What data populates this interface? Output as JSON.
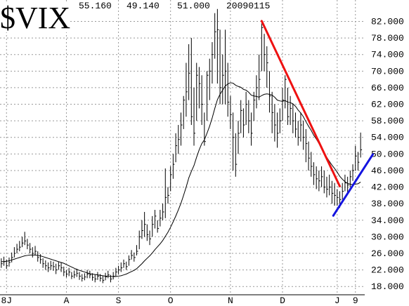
{
  "chart_data": {
    "type": "ohlc",
    "title": "$VIX",
    "header": {
      "high": "55.160",
      "low": "49.140",
      "close": "51.000",
      "date": "20090115"
    },
    "categories": [
      null,
      null,
      "8J",
      null,
      null,
      null,
      null,
      null,
      null,
      null,
      null,
      null,
      null,
      null,
      null,
      null,
      null,
      null,
      null,
      null,
      null,
      null,
      null,
      null,
      null,
      "A",
      null,
      null,
      null,
      null,
      null,
      null,
      null,
      null,
      null,
      null,
      null,
      null,
      null,
      null,
      null,
      null,
      null,
      null,
      null,
      "S",
      null,
      null,
      null,
      null,
      null,
      null,
      null,
      null,
      null,
      null,
      null,
      null,
      null,
      null,
      null,
      null,
      null,
      null,
      null,
      "O",
      null,
      null,
      null,
      null,
      null,
      null,
      null,
      null,
      null,
      null,
      null,
      null,
      null,
      null,
      null,
      null,
      null,
      null,
      null,
      null,
      null,
      null,
      "N",
      null,
      null,
      null,
      null,
      null,
      null,
      null,
      null,
      null,
      null,
      null,
      null,
      null,
      null,
      null,
      null,
      null,
      null,
      null,
      "D",
      null,
      null,
      null,
      null,
      null,
      null,
      null,
      null,
      null,
      null,
      null,
      null,
      null,
      null,
      null,
      null,
      null,
      null,
      null,
      null,
      "J",
      null,
      null,
      null,
      null,
      null,
      null,
      "9",
      null,
      null
    ],
    "high": [
      24.8,
      25.2,
      24.5,
      25.0,
      26.2,
      27.5,
      28.3,
      29.0,
      30.0,
      31.2,
      29.5,
      28.5,
      27.5,
      27.8,
      26.5,
      25.8,
      24.8,
      24.3,
      23.8,
      24.2,
      24.0,
      23.5,
      24.0,
      23.8,
      22.8,
      22.0,
      22.5,
      21.5,
      21.8,
      22.3,
      21.5,
      21.0,
      21.2,
      22.0,
      21.8,
      21.2,
      20.8,
      21.5,
      21.0,
      20.5,
      21.3,
      21.8,
      20.8,
      21.5,
      22.5,
      23.0,
      23.8,
      24.5,
      24.0,
      25.5,
      26.8,
      26.2,
      28.0,
      31.5,
      34.0,
      36.0,
      33.0,
      31.5,
      35.0,
      36.5,
      34.0,
      36.5,
      38.0,
      46.5,
      42.0,
      47.0,
      50.0,
      55.0,
      57.0,
      60.0,
      64.0,
      72.0,
      76.5,
      78.0,
      66.0,
      72.0,
      71.0,
      69.0,
      60.0,
      70.0,
      73.0,
      77.0,
      84.0,
      85.0,
      80.0,
      74.0,
      80.0,
      72.0,
      64.0,
      60.0,
      55.0,
      58.0,
      63.0,
      61.0,
      65.0,
      63.0,
      60.0,
      65.0,
      69.0,
      74.0,
      81.5,
      79.0,
      76.0,
      70.0,
      65.0,
      62.0,
      60.0,
      61.0,
      66.0,
      69.0,
      66.0,
      64.0,
      62.0,
      60.0,
      58.0,
      60.0,
      58.0,
      56.0,
      53.0,
      50.5,
      48.0,
      47.0,
      46.0,
      47.0,
      46.0,
      44.5,
      45.0,
      43.5,
      43.0,
      41.5,
      41.0,
      43.0,
      45.0,
      44.5,
      46.0,
      47.5,
      52.0,
      50.5,
      55.16
    ],
    "low": [
      22.5,
      23.0,
      22.2,
      22.8,
      23.8,
      25.0,
      26.0,
      26.5,
      27.5,
      28.0,
      27.0,
      26.0,
      25.0,
      25.5,
      24.0,
      23.5,
      22.5,
      22.0,
      21.5,
      22.0,
      21.8,
      21.0,
      22.0,
      21.5,
      20.5,
      20.2,
      20.5,
      19.8,
      20.0,
      20.3,
      19.6,
      19.2,
      19.5,
      20.0,
      20.0,
      19.4,
      19.0,
      19.6,
      19.2,
      18.8,
      19.5,
      20.0,
      19.0,
      19.7,
      20.5,
      21.0,
      21.5,
      22.5,
      22.0,
      23.0,
      24.5,
      24.0,
      25.5,
      27.0,
      29.5,
      30.0,
      29.0,
      28.0,
      30.0,
      32.0,
      31.0,
      32.5,
      34.0,
      34.5,
      38.0,
      41.0,
      44.0,
      48.0,
      50.0,
      52.0,
      56.0,
      59.0,
      63.0,
      57.0,
      52.0,
      58.0,
      61.0,
      57.0,
      52.0,
      58.0,
      63.0,
      67.0,
      73.0,
      67.0,
      62.0,
      62.0,
      62.0,
      59.0,
      56.0,
      46.0,
      44.5,
      50.0,
      55.0,
      54.0,
      57.0,
      55.0,
      52.0,
      58.0,
      61.0,
      63.0,
      70.0,
      70.0,
      66.0,
      60.0,
      55.0,
      53.0,
      51.5,
      55.0,
      58.0,
      61.0,
      57.0,
      57.0,
      55.0,
      54.0,
      52.0,
      53.0,
      51.0,
      48.0,
      46.0,
      44.5,
      42.5,
      41.5,
      41.0,
      42.0,
      40.5,
      39.5,
      40.0,
      38.0,
      37.5,
      37.5,
      37.0,
      39.0,
      41.0,
      40.5,
      42.0,
      43.5,
      46.0,
      46.0,
      49.14
    ],
    "close": [
      23.5,
      24.0,
      23.0,
      23.8,
      25.0,
      26.0,
      27.0,
      27.5,
      28.5,
      29.0,
      28.0,
      27.0,
      26.0,
      26.5,
      25.0,
      24.5,
      23.5,
      23.0,
      22.5,
      23.0,
      22.8,
      22.0,
      23.0,
      22.5,
      21.5,
      21.0,
      21.5,
      20.5,
      20.8,
      21.2,
      20.5,
      20.0,
      20.3,
      21.0,
      20.8,
      20.2,
      19.8,
      20.5,
      20.0,
      19.5,
      20.3,
      20.8,
      19.8,
      20.5,
      21.5,
      22.0,
      22.5,
      23.5,
      22.8,
      24.5,
      25.5,
      25.0,
      26.5,
      30.0,
      31.5,
      33.0,
      30.5,
      29.5,
      33.0,
      35.0,
      32.0,
      34.5,
      36.0,
      39.5,
      40.0,
      45.0,
      47.5,
      52.0,
      53.5,
      57.0,
      63.0,
      65.0,
      69.5,
      59.0,
      55.0,
      69.0,
      67.0,
      62.0,
      53.0,
      69.0,
      70.0,
      74.0,
      79.5,
      80.0,
      66.0,
      69.0,
      70.0,
      62.5,
      59.5,
      54.0,
      47.5,
      55.0,
      60.5,
      57.0,
      62.0,
      58.0,
      55.0,
      63.0,
      66.0,
      68.0,
      80.5,
      74.0,
      72.0,
      64.0,
      60.0,
      57.0,
      55.0,
      58.0,
      63.0,
      68.0,
      59.0,
      61.0,
      58.0,
      56.0,
      54.0,
      57.0,
      54.0,
      52.5,
      49.0,
      47.0,
      45.0,
      44.0,
      43.5,
      44.5,
      42.0,
      41.5,
      42.0,
      40.5,
      40.0,
      39.5,
      39.0,
      41.0,
      43.0,
      42.5,
      44.5,
      46.0,
      49.5,
      48.0,
      51.0
    ],
    "moving_average": [
      24,
      24,
      24.1,
      24.2,
      24.4,
      24.6,
      24.8,
      25,
      25.2,
      25.4,
      25.5,
      25.6,
      25.6,
      25.6,
      25.5,
      25.4,
      25.2,
      25,
      24.8,
      24.6,
      24.4,
      24.2,
      24,
      23.8,
      23.6,
      23.3,
      23,
      22.7,
      22.4,
      22.1,
      21.9,
      21.7,
      21.5,
      21.3,
      21.1,
      21,
      20.9,
      20.8,
      20.7,
      20.6,
      20.5,
      20.5,
      20.4,
      20.4,
      20.4,
      20.5,
      20.6,
      20.8,
      21,
      21.3,
      21.6,
      21.9,
      22.3,
      22.9,
      23.5,
      24.2,
      24.8,
      25.4,
      26.1,
      26.9,
      27.6,
      28.3,
      29.1,
      30.1,
      31.1,
      32.3,
      33.6,
      35,
      36.5,
      38.1,
      40,
      42,
      44.2,
      45.8,
      47.2,
      49.2,
      51,
      52.5,
      53.4,
      55,
      56.7,
      58.7,
      61,
      63.1,
      64.4,
      65.4,
      66.4,
      66.9,
      67.2,
      67.1,
      66.6,
      66.3,
      66.1,
      65.6,
      65.4,
      64.9,
      64.2,
      64,
      63.9,
      63.7,
      64.1,
      64.4,
      64.5,
      64.4,
      64.2,
      63.7,
      63,
      62.8,
      62.7,
      62.9,
      62.5,
      62.4,
      62.1,
      61.5,
      60.6,
      59.9,
      59,
      57.8,
      56.7,
      55.7,
      54.5,
      53.6,
      52.5,
      51.6,
      50.3,
      49.2,
      48.2,
      47.3,
      46.5,
      45.6,
      44.6,
      43.9,
      43.3,
      42.9,
      42.7,
      42.6,
      42.7,
      42.8,
      43.2
    ],
    "color": "#000000",
    "trendlines": [
      {
        "color": "#ee1111",
        "start": [
          100,
          82.1
        ],
        "end": [
          130,
          42.2
        ]
      },
      {
        "color": "#1414e0",
        "start": [
          127.5,
          35.1
        ],
        "end": [
          142.7,
          49.9
        ]
      }
    ],
    "ylim": [
      16,
      87
    ],
    "yticks": [
      {
        "value": 18,
        "label": "18.000"
      },
      {
        "value": 22,
        "label": "22.000"
      },
      {
        "value": 26,
        "label": "26.000"
      },
      {
        "value": 30,
        "label": "30.000"
      },
      {
        "value": 34,
        "label": "34.000"
      },
      {
        "value": 38,
        "label": "38.000"
      },
      {
        "value": 42,
        "label": "42.000"
      },
      {
        "value": 46,
        "label": "46.000"
      },
      {
        "value": 50,
        "label": "50.000"
      },
      {
        "value": 54,
        "label": "54.000"
      },
      {
        "value": 58,
        "label": "58.000"
      },
      {
        "value": 62,
        "label": "62.000"
      },
      {
        "value": 66,
        "label": "66.000"
      },
      {
        "value": 70,
        "label": "70.000"
      },
      {
        "value": 74,
        "label": "74.000"
      },
      {
        "value": 78,
        "label": "78.000"
      },
      {
        "value": 82,
        "label": "82.000"
      }
    ],
    "grid": true
  }
}
